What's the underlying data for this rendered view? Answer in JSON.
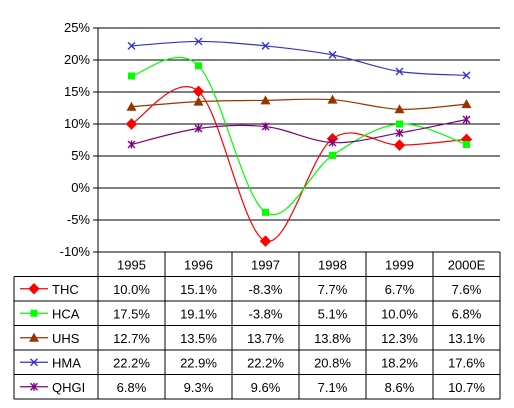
{
  "chart_data": {
    "type": "line",
    "title": "",
    "xlabel": "",
    "ylabel": "",
    "ylim": [
      -10,
      25
    ],
    "yticks": [
      "25%",
      "20%",
      "15%",
      "10%",
      "5%",
      "0%",
      "-5%",
      "-10%"
    ],
    "ytick_values": [
      25,
      20,
      15,
      10,
      5,
      0,
      -5,
      -10
    ],
    "categories": [
      "1995",
      "1996",
      "1997",
      "1998",
      "1999",
      "2000E"
    ],
    "grid": "horizontal",
    "legend": "data-table",
    "series": [
      {
        "name": "THC",
        "color": "#ff0000",
        "marker": "diamond",
        "marker_color": "#ff0000",
        "values": [
          10.0,
          15.1,
          -8.3,
          7.7,
          6.7,
          7.6
        ],
        "labels": [
          "10.0%",
          "15.1%",
          "-8.3%",
          "7.7%",
          "6.7%",
          "7.6%"
        ]
      },
      {
        "name": "HCA",
        "color": "#00ff00",
        "marker": "square",
        "marker_color": "#00ff00",
        "values": [
          17.5,
          19.1,
          -3.8,
          5.1,
          10.0,
          6.8
        ],
        "labels": [
          "17.5%",
          "19.1%",
          "-3.8%",
          "5.1%",
          "10.0%",
          "6.8%"
        ]
      },
      {
        "name": "UHS",
        "color": "#993300",
        "marker": "triangle",
        "marker_color": "#993300",
        "values": [
          12.7,
          13.5,
          13.7,
          13.8,
          12.3,
          13.1
        ],
        "labels": [
          "12.7%",
          "13.5%",
          "13.7%",
          "13.8%",
          "12.3%",
          "13.1%"
        ]
      },
      {
        "name": "HMA",
        "color": "#3333cc",
        "marker": "x",
        "marker_color": "#3333cc",
        "values": [
          22.2,
          22.9,
          22.2,
          20.8,
          18.2,
          17.6
        ],
        "labels": [
          "22.2%",
          "22.9%",
          "22.2%",
          "20.8%",
          "18.2%",
          "17.6%"
        ]
      },
      {
        "name": "QHGI",
        "color": "#800080",
        "marker": "star",
        "marker_color": "#800080",
        "values": [
          6.8,
          9.3,
          9.6,
          7.1,
          8.6,
          10.7
        ],
        "labels": [
          "6.8%",
          "9.3%",
          "9.6%",
          "7.1%",
          "8.6%",
          "10.7%"
        ]
      }
    ]
  }
}
